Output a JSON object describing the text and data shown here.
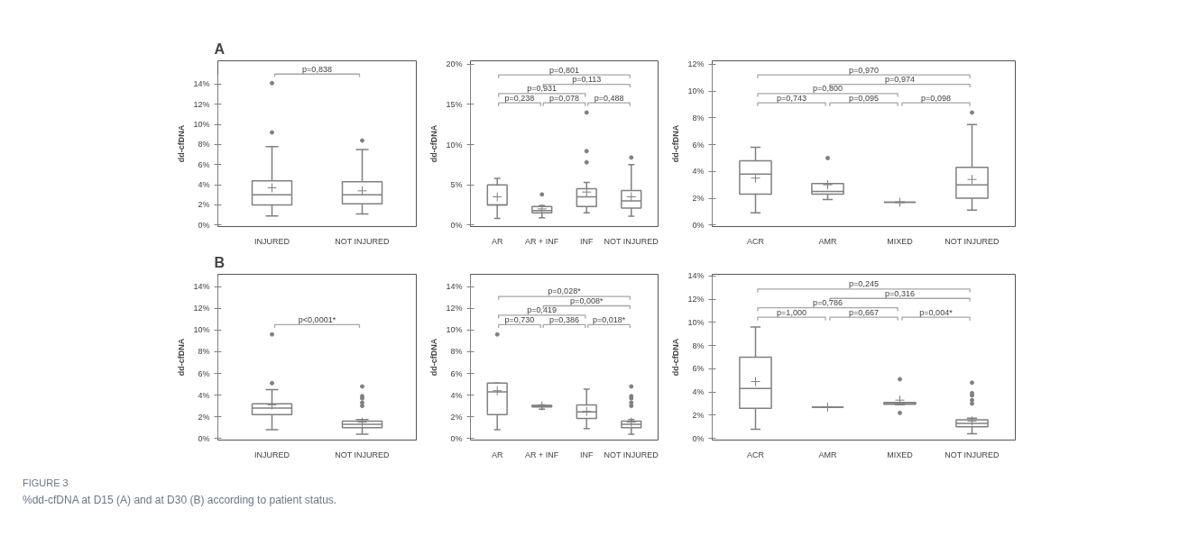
{
  "chart_data": [
    {
      "type": "box",
      "title": "A",
      "ylabel": "dd-cfDNA",
      "color": "#808080",
      "categories": [
        "INJURED",
        "NOT INJURED"
      ],
      "ylim": [
        0,
        15
      ],
      "yticks": [
        {
          "value": 0,
          "label": "0%"
        },
        {
          "value": 2,
          "label": "2%"
        },
        {
          "value": 4,
          "label": "4%"
        },
        {
          "value": 6,
          "label": "6%"
        },
        {
          "value": 8,
          "label": "8%"
        },
        {
          "value": 10,
          "label": "10%"
        },
        {
          "value": 12,
          "label": "12%"
        },
        {
          "value": 14,
          "label": "14%"
        }
      ],
      "boxes": [
        {
          "low": 0.9,
          "q1": 2.0,
          "median": 3.0,
          "q3": 4.4,
          "high": 7.8,
          "mean": 3.7,
          "outliers": [
            9.2,
            14.1
          ]
        },
        {
          "low": 1.1,
          "q1": 2.1,
          "median": 3.0,
          "q3": 4.3,
          "high": 7.5,
          "mean": 3.4,
          "outliers": [
            8.4
          ]
        }
      ],
      "annotations": [
        "p=0,838"
      ]
    },
    {
      "type": "box",
      "ylabel": "dd-cfDNA",
      "color": "#808080",
      "categories": [
        "AR",
        "AR + INF",
        "INF",
        "NOT INJURED"
      ],
      "ylim": [
        0,
        20
      ],
      "yticks": [
        {
          "value": 0,
          "label": "0%"
        },
        {
          "value": 5,
          "label": "5%"
        },
        {
          "value": 10,
          "label": "10%"
        },
        {
          "value": 15,
          "label": "15%"
        },
        {
          "value": 20,
          "label": "20%"
        }
      ],
      "boxes": [
        {
          "low": 0.8,
          "q1": 2.5,
          "median": 2.5,
          "q3": 5.0,
          "high": 5.8,
          "mean": 3.5
        },
        {
          "low": 0.9,
          "q1": 1.5,
          "median": 1.8,
          "q3": 2.3,
          "high": 2.4,
          "mean": 2.0,
          "outliers": [
            3.8
          ]
        },
        {
          "low": 1.5,
          "q1": 2.3,
          "median": 3.5,
          "q3": 4.5,
          "high": 5.3,
          "mean": 4.1,
          "outliers": [
            7.8,
            9.2,
            14.0
          ]
        },
        {
          "low": 1.1,
          "q1": 2.1,
          "median": 3.0,
          "q3": 4.3,
          "high": 7.5,
          "mean": 3.5,
          "outliers": [
            8.4
          ]
        }
      ],
      "annotations": [
        "p=0,801",
        "p=0,113",
        "p=0,931",
        "p=0,238",
        "p=0,078",
        "p=0,488"
      ]
    },
    {
      "type": "box",
      "ylabel": "dd-cfDNA",
      "color": "#808080",
      "categories": [
        "ACR",
        "AMR",
        "MIXED",
        "NOT INJURED"
      ],
      "ylim": [
        0,
        12
      ],
      "yticks": [
        {
          "value": 0,
          "label": "0%"
        },
        {
          "value": 2,
          "label": "2%"
        },
        {
          "value": 4,
          "label": "4%"
        },
        {
          "value": 6,
          "label": "6%"
        },
        {
          "value": 8,
          "label": "8%"
        },
        {
          "value": 10,
          "label": "10%"
        },
        {
          "value": 12,
          "label": "12%"
        }
      ],
      "boxes": [
        {
          "low": 0.9,
          "q1": 2.3,
          "median": 3.8,
          "q3": 4.8,
          "high": 5.8,
          "mean": 3.5
        },
        {
          "low": 1.9,
          "q1": 2.3,
          "median": 2.5,
          "q3": 3.1,
          "high": 3.1,
          "mean": 3.0,
          "outliers": [
            5.0
          ]
        },
        {
          "low": 1.7,
          "q1": 1.7,
          "median": 1.7,
          "q3": 1.7,
          "high": 1.7,
          "mean": 1.7
        },
        {
          "low": 1.1,
          "q1": 2.0,
          "median": 3.0,
          "q3": 4.3,
          "high": 7.5,
          "mean": 3.4,
          "outliers": [
            8.4
          ]
        }
      ],
      "annotations": [
        "p=0,970",
        "p=0,974",
        "p=0,800",
        "p=0,743",
        "p=0,095",
        "p=0,098"
      ]
    },
    {
      "type": "box",
      "title": "B",
      "ylabel": "dd-cfDNA",
      "color": "#808080",
      "categories": [
        "INJURED",
        "NOT INJURED"
      ],
      "ylim": [
        0,
        15
      ],
      "yticks": [
        {
          "value": 0,
          "label": "0%"
        },
        {
          "value": 2,
          "label": "2%"
        },
        {
          "value": 4,
          "label": "4%"
        },
        {
          "value": 6,
          "label": "6%"
        },
        {
          "value": 8,
          "label": "8%"
        },
        {
          "value": 10,
          "label": "10%"
        },
        {
          "value": 12,
          "label": "12%"
        },
        {
          "value": 14,
          "label": "14%"
        }
      ],
      "boxes": [
        {
          "low": 0.8,
          "q1": 2.2,
          "median": 2.8,
          "q3": 3.2,
          "high": 4.5,
          "mean": 3.1,
          "outliers": [
            5.1,
            9.6
          ]
        },
        {
          "low": 0.4,
          "q1": 1.0,
          "median": 1.3,
          "q3": 1.6,
          "high": 1.75,
          "mean": 1.5,
          "outliers": [
            3.0,
            3.3,
            3.7,
            3.9,
            4.8
          ]
        }
      ],
      "annotations": [
        "p<0,0001*"
      ]
    },
    {
      "type": "box",
      "ylabel": "dd-cfDNA",
      "color": "#808080",
      "categories": [
        "AR",
        "AR + INF",
        "INF",
        "NOT INJURED"
      ],
      "ylim": [
        0,
        15
      ],
      "yticks": [
        {
          "value": 0,
          "label": "0%"
        },
        {
          "value": 2,
          "label": "2%"
        },
        {
          "value": 4,
          "label": "4%"
        },
        {
          "value": 6,
          "label": "6%"
        },
        {
          "value": 8,
          "label": "8%"
        },
        {
          "value": 10,
          "label": "10%"
        },
        {
          "value": 12,
          "label": "12%"
        },
        {
          "value": 14,
          "label": "14%"
        }
      ],
      "boxes": [
        {
          "low": 0.8,
          "q1": 2.2,
          "median": 4.3,
          "q3": 5.1,
          "high": 5.1,
          "mean": 4.4,
          "outliers": [
            9.6
          ]
        },
        {
          "low": 2.7,
          "q1": 2.9,
          "median": 3.0,
          "q3": 3.05,
          "high": 3.1,
          "mean": 3.0
        },
        {
          "low": 0.9,
          "q1": 1.85,
          "median": 2.45,
          "q3": 3.1,
          "high": 4.55,
          "mean": 2.5
        },
        {
          "low": 0.4,
          "q1": 1.0,
          "median": 1.3,
          "q3": 1.6,
          "high": 1.75,
          "mean": 1.5,
          "outliers": [
            3.0,
            3.3,
            3.7,
            3.9,
            4.8
          ]
        }
      ],
      "annotations": [
        "p=0,028*",
        "p=0,008*",
        "p=0,419",
        "p=0,730",
        "p=0,386",
        "p=0,018*"
      ]
    },
    {
      "type": "box",
      "ylabel": "dd-cfDNA",
      "color": "#808080",
      "categories": [
        "ACR",
        "AMR",
        "MIXED",
        "NOT INJURED"
      ],
      "ylim": [
        0,
        14
      ],
      "yticks": [
        {
          "value": 0,
          "label": "0%"
        },
        {
          "value": 2,
          "label": "2%"
        },
        {
          "value": 4,
          "label": "4%"
        },
        {
          "value": 6,
          "label": "6%"
        },
        {
          "value": 8,
          "label": "8%"
        },
        {
          "value": 10,
          "label": "10%"
        },
        {
          "value": 12,
          "label": "12%"
        },
        {
          "value": 14,
          "label": "14%"
        }
      ],
      "boxes": [
        {
          "low": 0.8,
          "q1": 2.6,
          "median": 4.3,
          "q3": 7.0,
          "high": 9.6,
          "mean": 4.9
        },
        {
          "low": 2.7,
          "q1": 2.7,
          "median": 2.7,
          "q3": 2.7,
          "high": 2.7,
          "mean": 2.7
        },
        {
          "low": 2.9,
          "q1": 2.95,
          "median": 3.0,
          "q3": 3.1,
          "high": 3.1,
          "mean": 3.3,
          "outliers": [
            2.2,
            5.1
          ]
        },
        {
          "low": 0.4,
          "q1": 1.0,
          "median": 1.3,
          "q3": 1.6,
          "high": 1.75,
          "mean": 1.5,
          "outliers": [
            3.0,
            3.3,
            3.7,
            3.9,
            4.8
          ]
        }
      ],
      "annotations": [
        "p=0,245",
        "p=0,316",
        "p=0,786",
        "p=1,000",
        "p=0,667",
        "p=0,004*"
      ]
    },
    {
      "type": "other",
      "title": "FIGURE 3",
      "annotations": [
        "%dd-cfDNA at D15 (A) and at D30 (B) according to patient status."
      ]
    }
  ]
}
